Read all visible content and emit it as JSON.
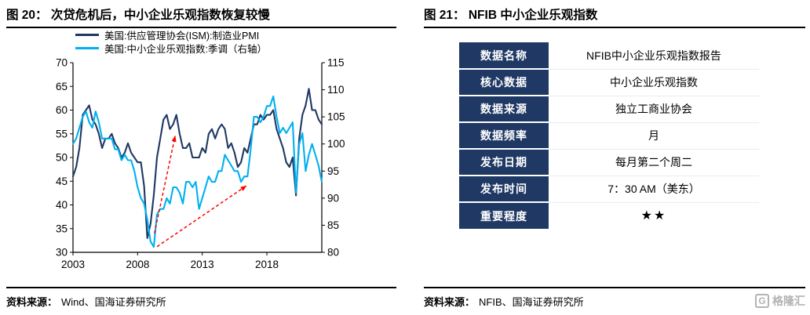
{
  "page": {
    "left_panel": {
      "title": "图 20： 次贷危机后，中小企业乐观指数恢复较慢",
      "source_label": "资料来源：",
      "source_text": "Wind、国海证券研究所"
    },
    "right_panel": {
      "title": "图 21： NFIB 中小企业乐观指数",
      "source_label": "资料来源：",
      "source_text": "NFIB、国海证券研究所"
    },
    "logo_glyph": "G",
    "logo_text": "格隆汇"
  },
  "chart_data": {
    "type": "line",
    "title": "",
    "grid": false,
    "legend_position": "top-left",
    "x_start": 2003.0,
    "x_step": 0.25,
    "x_ticks": [
      2003,
      2008,
      2013,
      2018
    ],
    "left_axis": {
      "min": 30,
      "max": 70,
      "ticks": [
        70,
        65,
        60,
        55,
        50,
        45,
        40,
        35,
        30
      ]
    },
    "right_axis": {
      "min": 80,
      "max": 115,
      "ticks": [
        115,
        110,
        105,
        100,
        95,
        90,
        85,
        80
      ]
    },
    "series": [
      {
        "name": "美国:供应管理协会(ISM):制造业PMI",
        "axis": "left",
        "color": "#1F3864",
        "values": [
          46,
          48,
          52,
          59,
          60,
          61,
          58,
          57,
          55,
          52,
          54,
          54,
          55,
          53,
          52,
          50,
          51,
          53,
          51,
          50,
          49,
          49,
          44,
          33,
          36,
          42,
          50,
          54,
          58,
          59,
          56,
          57,
          59,
          55,
          52,
          52,
          53,
          50,
          50,
          50,
          52,
          51,
          55,
          56,
          54,
          56,
          57,
          56,
          52,
          53,
          51,
          48,
          49,
          52,
          51,
          54,
          57,
          57,
          59,
          58,
          59,
          59,
          60,
          56,
          54,
          52,
          49,
          48,
          50,
          42,
          54,
          59,
          61,
          64.5,
          60,
          60,
          58,
          57
        ]
      },
      {
        "name": "美国:中小企业乐观指数:季调（右轴）",
        "axis": "right",
        "color": "#00B0F0",
        "values": [
          100,
          101,
          103,
          105,
          106,
          104,
          103,
          106,
          104,
          101,
          101,
          101,
          101,
          99,
          99,
          97,
          98,
          97,
          97,
          95,
          92,
          90,
          89,
          86,
          82,
          81,
          87,
          88,
          88,
          90,
          89,
          92,
          92,
          91,
          89,
          93,
          93,
          92,
          93,
          88,
          90,
          92,
          94,
          93,
          93,
          95,
          95,
          98,
          97,
          96,
          95,
          95,
          93,
          94,
          94,
          99,
          105,
          105,
          104,
          105,
          107,
          107,
          108.8,
          105,
          102,
          103,
          102,
          103,
          104,
          91,
          100,
          102,
          95,
          98,
          100,
          98,
          96,
          93
        ]
      }
    ],
    "annotations": [
      {
        "type": "arrow",
        "color": "#FF0000",
        "axis": "left",
        "from": [
          2009.3,
          34.0
        ],
        "to": [
          2010.9,
          54.5
        ]
      },
      {
        "type": "arrow",
        "color": "#FF0000",
        "axis": "left",
        "from": [
          2009.5,
          31.2
        ],
        "to": [
          2016.4,
          44.0
        ]
      }
    ]
  },
  "table": {
    "rows": [
      {
        "label": "数据名称",
        "value": "NFIB中小企业乐观指数报告"
      },
      {
        "label": "核心数据",
        "value": "中小企业乐观指数"
      },
      {
        "label": "数据来源",
        "value": "独立工商业协会"
      },
      {
        "label": "数据频率",
        "value": "月"
      },
      {
        "label": "发布日期",
        "value": "每月第二个周二"
      },
      {
        "label": "发布时间",
        "value": "7：30 AM（美东）"
      },
      {
        "label": "重要程度",
        "value": "★★"
      }
    ]
  }
}
